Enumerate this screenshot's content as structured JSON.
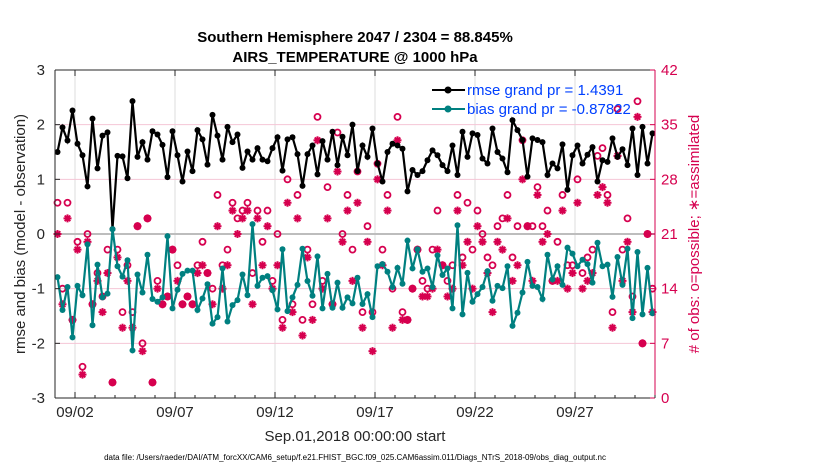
{
  "chart_data": {
    "type": "line",
    "title": [
      "Southern Hemisphere 2047 / 2304 = 88.845%",
      "AIRS_TEMPERATURE @ 1000 hPa"
    ],
    "xlabel": "Sep.01,2018 00:00:00 start",
    "ylabel_left": "rmse and bias (model - observation)",
    "ylabel_right": "# of obs: o=possible; ∗=assimilated",
    "footer": "data file: /Users/raeder/DAI/ATM_forcXX/CAM6_setup/f.e21.FHIST_BGC.f09_025.CAM6assim.011/Diags_NTrS_2018-09/obs_diag_output.nc",
    "x_tick_labels": [
      "09/02",
      "09/07",
      "09/12",
      "09/17",
      "09/22",
      "09/27"
    ],
    "x_tick_days": [
      2,
      7,
      12,
      17,
      22,
      27
    ],
    "x_range_days": [
      "2018-09-01",
      "2018-10-01"
    ],
    "time_step_hours": 6,
    "ylim_left": [
      -3,
      3
    ],
    "yticks_left": [
      -3,
      -2,
      -1,
      0,
      1,
      2,
      3
    ],
    "ylim_right": [
      0,
      42
    ],
    "yticks_right": [
      0,
      7,
      14,
      21,
      28,
      35,
      42
    ],
    "grid": true,
    "legend_placement": "top-right",
    "colors": {
      "rmse": "#000000",
      "bias": "#008080",
      "obs": "#d6004f",
      "legend_text": "#0040ff",
      "right_axis": "#d6004f"
    },
    "series": [
      {
        "name": "rmse grand pr = 1.4391",
        "axis": "left",
        "marker": "filled-circle",
        "values": [
          1.5,
          1.95,
          1.71,
          2.26,
          1.65,
          1.44,
          0.87,
          2.11,
          1.2,
          1.8,
          1.86,
          0.09,
          1.43,
          1.42,
          1.02,
          2.43,
          1.41,
          1.68,
          1.36,
          1.88,
          1.82,
          1.63,
          1.04,
          1.88,
          1.44,
          0.96,
          1.51,
          1.15,
          1.9,
          1.73,
          1.27,
          2.18,
          1.8,
          1.36,
          1.96,
          1.68,
          1.82,
          1.21,
          1.51,
          1.36,
          1.57,
          1.36,
          1.33,
          1.57,
          1.77,
          1.16,
          1.73,
          1.77,
          1.46,
          0.88,
          1.46,
          1.62,
          1.09,
          1.7,
          1.36,
          1.87,
          1.26,
          1.78,
          1.44,
          2.0,
          1.15,
          1.62,
          1.41,
          1.93,
          1.29,
          0.96,
          1.5,
          1.65,
          1.62,
          1.56,
          0.78,
          1.17,
          1.08,
          1.15,
          1.35,
          1.53,
          1.44,
          1.26,
          1.15,
          1.62,
          1.08,
          1.87,
          1.41,
          1.84,
          1.81,
          1.38,
          1.29,
          1.93,
          1.5,
          1.38,
          1.13,
          2.08,
          1.9,
          1.72,
          1.05,
          1.75,
          1.72,
          1.68,
          1.08,
          1.29,
          1.2,
          1.64,
          0.81,
          1.44,
          1.62,
          1.29,
          1.45,
          1.59,
          0.96,
          1.35,
          1.32,
          1.75,
          1.41,
          1.55,
          1.26,
          1.93,
          1.08,
          1.96,
          1.29,
          1.84
        ]
      },
      {
        "name": "bias grand pr = -0.87822",
        "axis": "left",
        "marker": "filled-circle",
        "values": [
          -0.79,
          -1.39,
          -0.97,
          -1.89,
          -0.95,
          -1.12,
          -0.19,
          -1.67,
          -0.56,
          -1.16,
          -1.09,
          0.09,
          -0.59,
          -0.78,
          -0.48,
          -2.13,
          -0.74,
          -1.07,
          -0.38,
          -1.19,
          -1.24,
          -1.16,
          -0.04,
          -1.36,
          -1.02,
          -0.73,
          -0.67,
          -0.67,
          -1.39,
          -1.18,
          -0.92,
          -1.64,
          -1.52,
          -0.63,
          -1.6,
          -1.3,
          -1.21,
          -0.74,
          -1.12,
          0.18,
          -0.95,
          -0.8,
          -0.77,
          -1.03,
          -1.38,
          -0.28,
          -1.41,
          -1.16,
          -0.93,
          -0.27,
          -0.86,
          -1.13,
          -0.41,
          -1.36,
          -0.73,
          -1.35,
          -0.89,
          -1.35,
          -1.16,
          -1.27,
          -0.8,
          -1.28,
          -1.1,
          -1.52,
          -0.59,
          -0.55,
          -0.69,
          -0.97,
          -0.62,
          -0.91,
          -0.12,
          -0.63,
          -0.28,
          -0.69,
          -0.63,
          -0.97,
          -0.39,
          -0.75,
          -0.63,
          -1.36,
          0.16,
          -1.47,
          -0.71,
          -1.24,
          -1.1,
          -0.97,
          -0.68,
          -1.22,
          -0.95,
          -0.99,
          -0.59,
          -1.68,
          -1.44,
          -1.07,
          -0.51,
          -0.95,
          -0.97,
          -1.19,
          -0.38,
          -0.83,
          -0.59,
          -0.93,
          -0.25,
          -0.36,
          -0.59,
          -0.47,
          -0.55,
          -0.89,
          -0.16,
          -0.59,
          -0.56,
          -1.15,
          -0.42,
          -0.93,
          -0.27,
          -1.54,
          -0.33,
          -1.47,
          -0.62,
          -1.45
        ]
      },
      {
        "label": "possible",
        "axis": "right",
        "marker": "open-circle",
        "values": [
          25,
          14,
          25,
          10,
          20,
          4,
          21,
          12,
          16,
          13,
          19,
          2,
          19,
          11,
          17,
          11,
          22,
          7,
          23,
          2,
          15,
          12,
          13,
          19,
          17,
          12,
          13,
          12,
          17,
          20,
          16,
          14,
          26,
          17,
          19,
          25,
          23,
          24,
          25,
          16,
          24,
          20,
          24,
          15,
          21,
          10,
          28,
          12,
          26,
          10,
          19,
          12,
          36,
          15,
          27,
          12,
          34,
          21,
          26,
          19,
          29,
          11,
          22,
          11,
          30,
          19,
          26,
          14,
          36,
          11,
          10,
          14,
          19,
          15,
          14,
          19,
          24,
          17,
          15,
          17,
          26,
          18,
          25,
          19,
          24,
          21,
          18,
          17,
          22,
          23,
          26,
          18,
          22,
          33,
          22,
          22,
          27,
          22,
          24,
          15,
          20,
          26,
          17,
          17,
          28,
          16,
          18,
          19,
          31,
          32,
          26,
          11,
          37,
          19,
          23,
          13,
          38,
          7,
          21,
          14
        ]
      },
      {
        "label": "assimilated",
        "axis": "right",
        "marker": "asterisk",
        "values": [
          21,
          12,
          23,
          10,
          19,
          3,
          20,
          12,
          15,
          11,
          16,
          2,
          18,
          9,
          15,
          9,
          22,
          6,
          23,
          2,
          14,
          12,
          13,
          19,
          15,
          12,
          13,
          12,
          16,
          17,
          16,
          12,
          22,
          14,
          17,
          24,
          21,
          23,
          24,
          12,
          23,
          17,
          22,
          14,
          17,
          9,
          25,
          11,
          23,
          8,
          18,
          10,
          33,
          14,
          23,
          12,
          29,
          20,
          24,
          15,
          25,
          9,
          20,
          6,
          28,
          17,
          24,
          9,
          33,
          10,
          10,
          14,
          19,
          13,
          13,
          14,
          19,
          17,
          13,
          14,
          24,
          17,
          20,
          14,
          22,
          20,
          16,
          11,
          20,
          19,
          23,
          15,
          17,
          28,
          22,
          15,
          26,
          20,
          21,
          15,
          15,
          24,
          14,
          16,
          25,
          14,
          15,
          16,
          26,
          27,
          25,
          9,
          31,
          15,
          20,
          11,
          36,
          7,
          21,
          11
        ]
      }
    ]
  }
}
